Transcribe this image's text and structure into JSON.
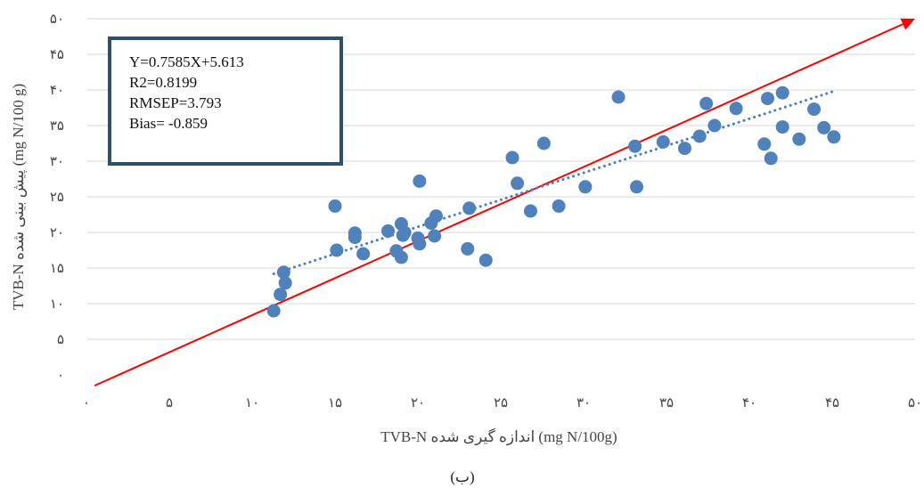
{
  "chart_data": {
    "type": "scatter",
    "xlabel": "TVB-N اندازه گیری شده (mg N/100g)",
    "ylabel": "TVB-N پیش بینی شده (mg N/100 g)",
    "caption": "(ب)",
    "xlim": [
      0,
      50
    ],
    "ylim": [
      0,
      50
    ],
    "ticks": [
      0,
      5,
      10,
      15,
      20,
      25,
      30,
      35,
      40,
      45,
      50
    ],
    "tick_labels": [
      "۰",
      "۵",
      "۱۰",
      "۱۵",
      "۲۰",
      "۲۵",
      "۳۰",
      "۳۵",
      "۴۰",
      "۴۵",
      "۵۰"
    ],
    "grid": "horizontal",
    "stats": [
      "Y=0.7585X+5.613",
      "R2=0.8199",
      "RMSEP=3.793",
      "Bias= -0.859"
    ],
    "fit_line": {
      "slope": 0.7585,
      "intercept": 5.613,
      "x_range": [
        11.3,
        45.2
      ],
      "color": "#4a7ebb"
    },
    "reference_line": {
      "points": [
        [
          0.5,
          -1.5
        ],
        [
          50,
          50
        ]
      ],
      "color": "#ff0000"
    },
    "point_color": "#4f81bd",
    "points": [
      [
        11.3,
        9.0
      ],
      [
        11.7,
        11.3
      ],
      [
        12.0,
        12.9
      ],
      [
        11.9,
        14.4
      ],
      [
        15.1,
        17.5
      ],
      [
        15.0,
        23.7
      ],
      [
        16.2,
        19.9
      ],
      [
        16.2,
        19.3
      ],
      [
        16.7,
        17.0
      ],
      [
        18.2,
        20.2
      ],
      [
        18.7,
        17.4
      ],
      [
        19.0,
        21.2
      ],
      [
        19.0,
        16.5
      ],
      [
        19.2,
        20.0
      ],
      [
        19.1,
        19.6
      ],
      [
        20.0,
        19.2
      ],
      [
        20.1,
        18.4
      ],
      [
        20.1,
        27.2
      ],
      [
        20.8,
        21.3
      ],
      [
        21.1,
        22.3
      ],
      [
        21.0,
        19.5
      ],
      [
        23.1,
        23.4
      ],
      [
        23.0,
        17.7
      ],
      [
        24.1,
        16.1
      ],
      [
        25.7,
        30.5
      ],
      [
        26.0,
        26.9
      ],
      [
        26.8,
        23.0
      ],
      [
        27.6,
        32.5
      ],
      [
        28.5,
        23.7
      ],
      [
        30.1,
        26.4
      ],
      [
        32.1,
        39.0
      ],
      [
        33.1,
        32.1
      ],
      [
        33.2,
        26.4
      ],
      [
        34.8,
        32.7
      ],
      [
        36.1,
        31.8
      ],
      [
        37.0,
        33.5
      ],
      [
        37.4,
        38.1
      ],
      [
        37.9,
        35.0
      ],
      [
        39.2,
        37.4
      ],
      [
        40.9,
        32.4
      ],
      [
        41.1,
        38.8
      ],
      [
        41.3,
        30.4
      ],
      [
        42.0,
        39.6
      ],
      [
        42.0,
        34.8
      ],
      [
        43.0,
        33.1
      ],
      [
        43.9,
        37.3
      ],
      [
        44.5,
        34.7
      ],
      [
        45.1,
        33.4
      ]
    ]
  }
}
